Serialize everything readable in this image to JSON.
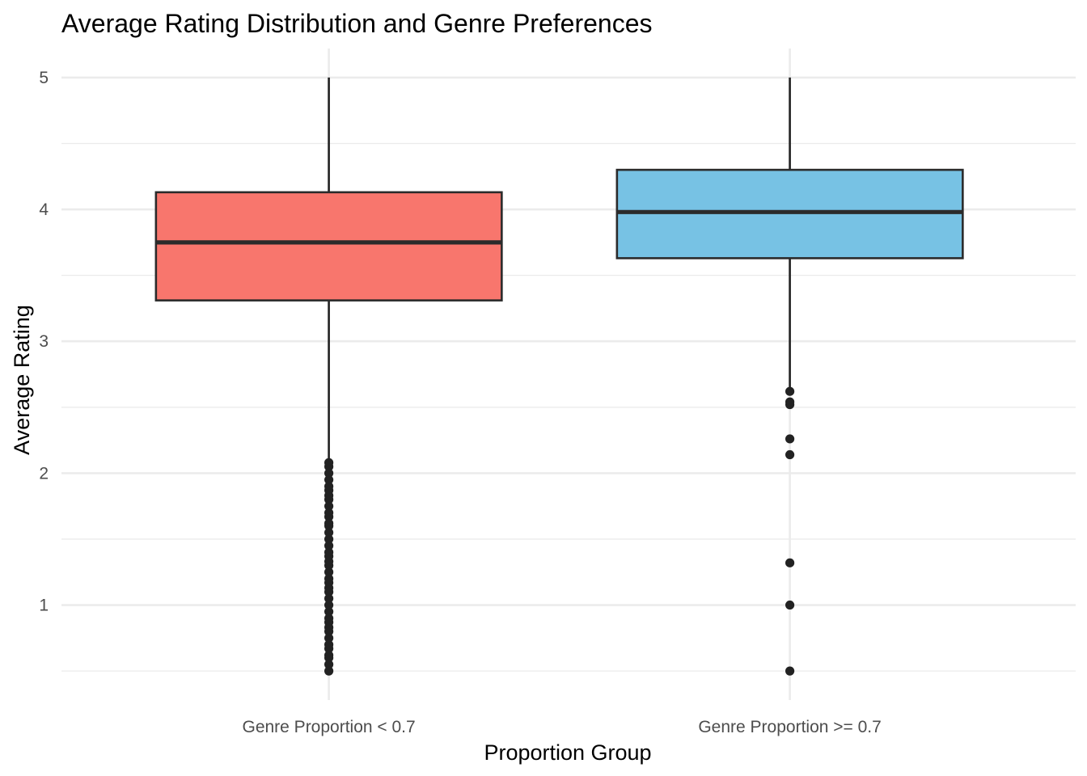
{
  "chart_data": {
    "type": "boxplot",
    "title": "Average Rating Distribution and Genre Preferences",
    "xlabel": "Proportion Group",
    "ylabel": "Average Rating",
    "ylim": [
      0.28,
      5.22
    ],
    "yticks": [
      1,
      2,
      3,
      4,
      5
    ],
    "grid": true,
    "legend": "none",
    "categories": [
      "Genre Proportion < 0.7",
      "Genre Proportion >= 0.7"
    ],
    "boxes": [
      {
        "category": "Genre Proportion < 0.7",
        "whisker_low": 2.1,
        "q1": 3.31,
        "median": 3.75,
        "q3": 4.13,
        "whisker_high": 5.0,
        "fill": "#F8766D",
        "outliers": [
          0.5,
          0.55,
          0.6,
          0.62,
          0.67,
          0.7,
          0.75,
          0.8,
          0.83,
          0.87,
          0.9,
          0.95,
          1.0,
          1.05,
          1.1,
          1.13,
          1.17,
          1.2,
          1.25,
          1.3,
          1.33,
          1.37,
          1.4,
          1.45,
          1.5,
          1.55,
          1.6,
          1.62,
          1.67,
          1.7,
          1.75,
          1.8,
          1.83,
          1.87,
          1.9,
          1.95,
          2.0,
          2.05,
          2.08
        ]
      },
      {
        "category": "Genre Proportion >= 0.7",
        "whisker_low": 2.64,
        "q1": 3.63,
        "median": 3.98,
        "q3": 4.3,
        "whisker_high": 5.0,
        "fill": "#77C2E4",
        "outliers": [
          0.5,
          1.0,
          1.32,
          2.14,
          2.26,
          2.52,
          2.54,
          2.62
        ]
      }
    ]
  }
}
